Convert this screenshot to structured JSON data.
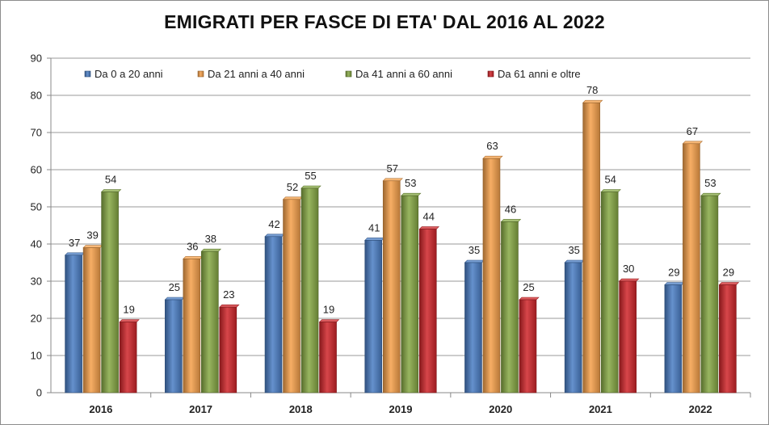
{
  "chart_data": {
    "type": "bar",
    "title": "EMIGRATI PER FASCE DI ETA' DAL 2016 AL 2022",
    "categories": [
      "2016",
      "2017",
      "2018",
      "2019",
      "2020",
      "2021",
      "2022"
    ],
    "series": [
      {
        "name": "Da 0 a 20 anni",
        "color": "#4a7dc4",
        "values": [
          37,
          25,
          42,
          41,
          35,
          35,
          29
        ]
      },
      {
        "name": "Da 21 anni a 40 anni",
        "color": "#f5a04a",
        "values": [
          39,
          36,
          52,
          57,
          63,
          78,
          67
        ]
      },
      {
        "name": "Da 41 anni a 60 anni",
        "color": "#86a844",
        "values": [
          54,
          38,
          55,
          53,
          46,
          54,
          53
        ]
      },
      {
        "name": "Da 61 anni e oltre",
        "color": "#d0252a",
        "values": [
          19,
          23,
          19,
          44,
          25,
          30,
          29
        ]
      }
    ],
    "ylim": [
      0,
      90
    ],
    "yticks": [
      "0",
      "10",
      "20",
      "30",
      "40",
      "50",
      "60",
      "70",
      "80",
      "90"
    ],
    "xlabel": "",
    "ylabel": "",
    "legend": "top"
  }
}
